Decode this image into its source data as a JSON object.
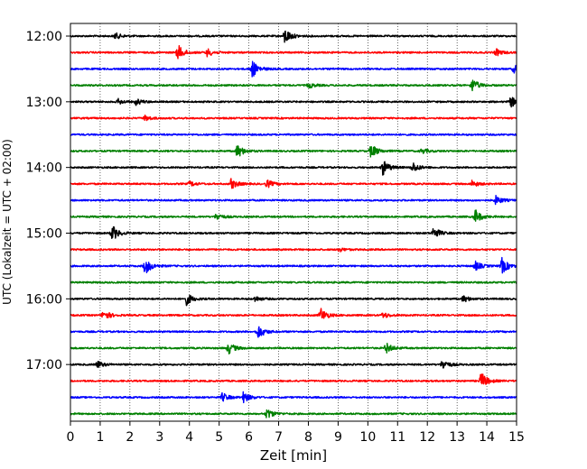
{
  "chart_data": {
    "type": "line",
    "subtype": "helicorder-seismogram",
    "title": "",
    "xlabel": "Zeit  [min]",
    "ylabel": "UTC (Lokalzeit = UTC + 02:00)",
    "xlim": [
      0,
      15
    ],
    "x_ticks": [
      "0",
      "1",
      "2",
      "3",
      "4",
      "5",
      "6",
      "7",
      "8",
      "9",
      "10",
      "11",
      "12",
      "13",
      "14",
      "15"
    ],
    "y_tick_labels": [
      "12:00",
      "13:00",
      "14:00",
      "15:00",
      "16:00",
      "17:00"
    ],
    "grid": "vertical dotted lines at each minute",
    "trace_colors": [
      "#000000",
      "#ff0000",
      "#0000ff",
      "#008000"
    ],
    "traces": [
      {
        "start": "12:00",
        "color": "black",
        "events": [
          [
            1.5,
            0.35
          ],
          [
            7.2,
            0.9
          ]
        ]
      },
      {
        "start": "12:15",
        "color": "red",
        "events": [
          [
            3.6,
            0.9
          ],
          [
            4.6,
            0.45
          ],
          [
            14.3,
            0.4
          ]
        ]
      },
      {
        "start": "12:30",
        "color": "blue",
        "events": [
          [
            6.1,
            1.0
          ],
          [
            14.9,
            0.45
          ]
        ]
      },
      {
        "start": "12:45",
        "color": "green",
        "events": [
          [
            8.0,
            0.3
          ],
          [
            13.5,
            0.75
          ]
        ]
      },
      {
        "start": "13:00",
        "color": "black",
        "events": [
          [
            1.6,
            0.3
          ],
          [
            2.2,
            0.35
          ],
          [
            14.8,
            0.6
          ]
        ]
      },
      {
        "start": "13:15",
        "color": "red",
        "events": [
          [
            2.5,
            0.3
          ]
        ]
      },
      {
        "start": "13:30",
        "color": "blue",
        "events": []
      },
      {
        "start": "13:45",
        "color": "green",
        "events": [
          [
            5.6,
            0.8
          ],
          [
            10.1,
            0.8
          ],
          [
            11.8,
            0.3
          ]
        ]
      },
      {
        "start": "14:00",
        "color": "black",
        "events": [
          [
            10.5,
            0.85
          ],
          [
            11.5,
            0.6
          ]
        ]
      },
      {
        "start": "14:15",
        "color": "red",
        "events": [
          [
            4.0,
            0.3
          ],
          [
            5.4,
            0.6
          ],
          [
            6.6,
            0.45
          ],
          [
            13.5,
            0.35
          ]
        ]
      },
      {
        "start": "14:30",
        "color": "blue",
        "events": [
          [
            14.3,
            0.5
          ]
        ]
      },
      {
        "start": "14:45",
        "color": "green",
        "events": [
          [
            4.9,
            0.4
          ],
          [
            13.6,
            0.8
          ]
        ]
      },
      {
        "start": "15:00",
        "color": "black",
        "events": [
          [
            1.4,
            0.9
          ],
          [
            12.2,
            0.7
          ]
        ]
      },
      {
        "start": "15:15",
        "color": "red",
        "events": [
          [
            9.0,
            0.25
          ]
        ]
      },
      {
        "start": "15:30",
        "color": "blue",
        "events": [
          [
            2.5,
            1.0
          ],
          [
            13.6,
            0.55
          ],
          [
            14.5,
            0.9
          ]
        ]
      },
      {
        "start": "15:45",
        "color": "green",
        "events": []
      },
      {
        "start": "16:00",
        "color": "black",
        "events": [
          [
            3.9,
            0.65
          ],
          [
            6.2,
            0.3
          ],
          [
            13.2,
            0.4
          ]
        ]
      },
      {
        "start": "16:15",
        "color": "red",
        "events": [
          [
            1.1,
            0.65
          ],
          [
            8.4,
            0.85
          ],
          [
            10.5,
            0.35
          ]
        ]
      },
      {
        "start": "16:30",
        "color": "blue",
        "events": [
          [
            6.3,
            0.8
          ]
        ]
      },
      {
        "start": "16:45",
        "color": "green",
        "events": [
          [
            5.3,
            0.7
          ],
          [
            10.6,
            0.6
          ]
        ]
      },
      {
        "start": "17:00",
        "color": "black",
        "events": [
          [
            0.9,
            0.4
          ],
          [
            12.5,
            0.6
          ]
        ]
      },
      {
        "start": "17:15",
        "color": "red",
        "events": [
          [
            13.8,
            1.0
          ]
        ]
      },
      {
        "start": "17:30",
        "color": "blue",
        "events": [
          [
            5.1,
            0.5
          ],
          [
            5.8,
            0.6
          ]
        ]
      },
      {
        "start": "17:45",
        "color": "green",
        "events": [
          [
            6.6,
            0.6
          ]
        ]
      }
    ]
  }
}
